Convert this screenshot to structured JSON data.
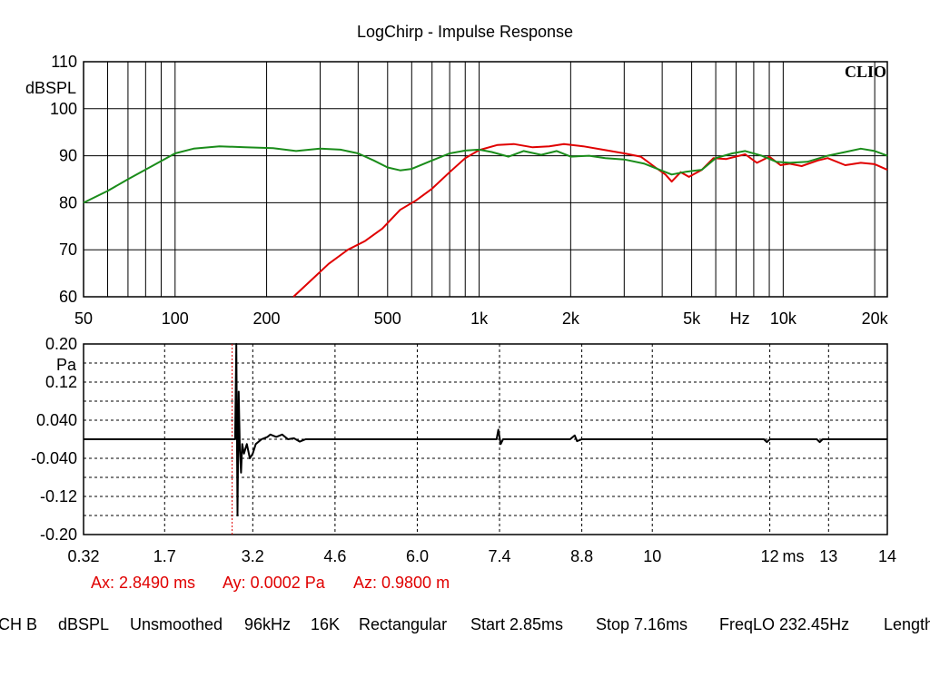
{
  "app": {
    "title": "LogChirp - Impulse Response",
    "brand": "CLIO"
  },
  "colors": {
    "grid": "#000000",
    "series_red": "#e00000",
    "series_green": "#1a8c1a",
    "impulse": "#000000",
    "cursor": "#e00000"
  },
  "cursor_readout": {
    "ax": "Ax: 2.8490 ms",
    "ay": "Ay: 0.0002 Pa",
    "az": "Az: 0.9800 m"
  },
  "status_bar": [
    "CH B",
    "dBSPL",
    "Unsmoothed",
    "96kHz",
    "16K",
    "Rectangular",
    "Start 2.85ms",
    "Stop 7.16ms",
    "FreqLO 232.45Hz",
    "Length"
  ],
  "chart_data": [
    {
      "type": "line",
      "title": "LogChirp - Impulse Response",
      "xscale": "log",
      "xlim": [
        50,
        22000
      ],
      "ylim": [
        60,
        110
      ],
      "ylabel": "dBSPL",
      "xlabel": "Hz",
      "xticks": [
        {
          "v": 50,
          "label": "50"
        },
        {
          "v": 100,
          "label": "100"
        },
        {
          "v": 200,
          "label": "200"
        },
        {
          "v": 500,
          "label": "500"
        },
        {
          "v": 1000,
          "label": "1k"
        },
        {
          "v": 2000,
          "label": "2k"
        },
        {
          "v": 5000,
          "label": "5k"
        },
        {
          "v": 10000,
          "label": "10k"
        },
        {
          "v": 20000,
          "label": "20k"
        }
      ],
      "x_unit_label": {
        "v": 7200,
        "label": "Hz"
      },
      "yticks": [
        {
          "v": 110,
          "label": "110"
        },
        {
          "v": 100,
          "label": "100"
        },
        {
          "v": 90,
          "label": "90"
        },
        {
          "v": 80,
          "label": "80"
        },
        {
          "v": 70,
          "label": "70"
        },
        {
          "v": 60,
          "label": "60"
        }
      ],
      "grid": true,
      "series": [
        {
          "color": "#e00000",
          "points": [
            [
              245,
              60.0
            ],
            [
              280,
              63.5
            ],
            [
              320,
              67
            ],
            [
              370,
              70
            ],
            [
              420,
              71.8
            ],
            [
              480,
              74.5
            ],
            [
              550,
              78.5
            ],
            [
              620,
              80.5
            ],
            [
              700,
              83
            ],
            [
              800,
              86.5
            ],
            [
              900,
              89.5
            ],
            [
              1000,
              91.2
            ],
            [
              1150,
              92.3
            ],
            [
              1300,
              92.5
            ],
            [
              1500,
              91.8
            ],
            [
              1700,
              92.0
            ],
            [
              1900,
              92.5
            ],
            [
              2200,
              92.0
            ],
            [
              2600,
              91.2
            ],
            [
              3000,
              90.5
            ],
            [
              3400,
              89.8
            ],
            [
              3800,
              87.5
            ],
            [
              4100,
              86.0
            ],
            [
              4300,
              84.5
            ],
            [
              4600,
              86.5
            ],
            [
              4900,
              85.5
            ],
            [
              5400,
              87.0
            ],
            [
              5900,
              89.5
            ],
            [
              6500,
              89.3
            ],
            [
              7500,
              90.3
            ],
            [
              8200,
              88.5
            ],
            [
              9000,
              89.8
            ],
            [
              9800,
              88.0
            ],
            [
              10500,
              88.3
            ],
            [
              11500,
              87.8
            ],
            [
              13000,
              89.0
            ],
            [
              14000,
              89.5
            ],
            [
              16000,
              88.0
            ],
            [
              18000,
              88.5
            ],
            [
              20000,
              88.2
            ],
            [
              22000,
              87.0
            ]
          ]
        },
        {
          "color": "#1a8c1a",
          "points": [
            [
              50,
              80.0
            ],
            [
              60,
              82.5
            ],
            [
              70,
              85
            ],
            [
              85,
              88
            ],
            [
              100,
              90.5
            ],
            [
              115,
              91.5
            ],
            [
              140,
              92.0
            ],
            [
              170,
              91.8
            ],
            [
              210,
              91.6
            ],
            [
              250,
              91.0
            ],
            [
              300,
              91.5
            ],
            [
              350,
              91.3
            ],
            [
              400,
              90.5
            ],
            [
              450,
              89.0
            ],
            [
              500,
              87.5
            ],
            [
              550,
              86.9
            ],
            [
              600,
              87.2
            ],
            [
              700,
              89.0
            ],
            [
              800,
              90.5
            ],
            [
              900,
              91.1
            ],
            [
              1000,
              91.3
            ],
            [
              1100,
              90.8
            ],
            [
              1250,
              89.8
            ],
            [
              1400,
              91.0
            ],
            [
              1600,
              90.2
            ],
            [
              1800,
              91.0
            ],
            [
              2000,
              89.8
            ],
            [
              2300,
              90.0
            ],
            [
              2600,
              89.5
            ],
            [
              3000,
              89.2
            ],
            [
              3500,
              88.3
            ],
            [
              4000,
              86.8
            ],
            [
              4300,
              86.0
            ],
            [
              4800,
              86.6
            ],
            [
              5400,
              87.0
            ],
            [
              6000,
              89.5
            ],
            [
              6800,
              90.5
            ],
            [
              7500,
              91.0
            ],
            [
              8500,
              90.0
            ],
            [
              9500,
              88.7
            ],
            [
              10500,
              88.5
            ],
            [
              12000,
              88.7
            ],
            [
              14000,
              90.0
            ],
            [
              16000,
              90.8
            ],
            [
              18000,
              91.5
            ],
            [
              20000,
              91.0
            ],
            [
              22000,
              90.0
            ]
          ]
        }
      ]
    },
    {
      "type": "line",
      "xlim": [
        0.32,
        14
      ],
      "ylim": [
        -0.2,
        0.2
      ],
      "ylabel": "Pa",
      "xlabel": "ms",
      "xticks": [
        {
          "v": 0.32,
          "label": "0.32"
        },
        {
          "v": 1.7,
          "label": "1.7"
        },
        {
          "v": 3.2,
          "label": "3.2"
        },
        {
          "v": 4.6,
          "label": "4.6"
        },
        {
          "v": 6.0,
          "label": "6.0"
        },
        {
          "v": 7.4,
          "label": "7.4"
        },
        {
          "v": 8.8,
          "label": "8.8"
        },
        {
          "v": 10,
          "label": "10"
        },
        {
          "v": 12,
          "label": "12"
        },
        {
          "v": 13,
          "label": "13"
        },
        {
          "v": 14,
          "label": "14"
        }
      ],
      "x_unit_label": {
        "v": 12.4,
        "label": "ms"
      },
      "yticks": [
        {
          "v": 0.2,
          "label": "0.20"
        },
        {
          "v": 0.12,
          "label": "0.12"
        },
        {
          "v": 0.04,
          "label": "0.040"
        },
        {
          "v": -0.04,
          "label": "-0.040"
        },
        {
          "v": -0.12,
          "label": "-0.12"
        },
        {
          "v": -0.2,
          "label": "-0.20"
        }
      ],
      "grid": true,
      "cursor_x": 2.849,
      "series": [
        {
          "color": "#000000",
          "points": [
            [
              0.32,
              0.0
            ],
            [
              1.0,
              0.0
            ],
            [
              2.0,
              0.0
            ],
            [
              2.8,
              0.0
            ],
            [
              2.9,
              0.0
            ],
            [
              2.92,
              0.2
            ],
            [
              2.94,
              -0.16
            ],
            [
              2.96,
              0.1
            ],
            [
              2.98,
              -0.02
            ],
            [
              3.0,
              -0.07
            ],
            [
              3.02,
              -0.01
            ],
            [
              3.05,
              -0.03
            ],
            [
              3.1,
              -0.01
            ],
            [
              3.15,
              -0.04
            ],
            [
              3.2,
              -0.03
            ],
            [
              3.25,
              -0.01
            ],
            [
              3.35,
              0.0
            ],
            [
              3.45,
              0.005
            ],
            [
              3.5,
              0.01
            ],
            [
              3.6,
              0.005
            ],
            [
              3.7,
              0.01
            ],
            [
              3.8,
              0.0
            ],
            [
              3.9,
              0.002
            ],
            [
              4.0,
              -0.005
            ],
            [
              4.1,
              0.0
            ],
            [
              4.5,
              0.0
            ],
            [
              5.0,
              0.0
            ],
            [
              6.0,
              0.0
            ],
            [
              7.0,
              0.0
            ],
            [
              7.35,
              0.0
            ],
            [
              7.38,
              0.02
            ],
            [
              7.42,
              -0.01
            ],
            [
              7.46,
              0.0
            ],
            [
              7.6,
              0.0
            ],
            [
              8.0,
              0.0
            ],
            [
              8.6,
              0.0
            ],
            [
              8.68,
              0.008
            ],
            [
              8.72,
              -0.004
            ],
            [
              8.8,
              0.0
            ],
            [
              9.5,
              0.0
            ],
            [
              10.5,
              0.0
            ],
            [
              11.5,
              0.0
            ],
            [
              11.9,
              0.0
            ],
            [
              11.95,
              -0.006
            ],
            [
              12.0,
              0.0
            ],
            [
              12.8,
              0.0
            ],
            [
              12.85,
              -0.006
            ],
            [
              12.9,
              0.0
            ],
            [
              14.0,
              0.0
            ]
          ]
        }
      ]
    }
  ]
}
